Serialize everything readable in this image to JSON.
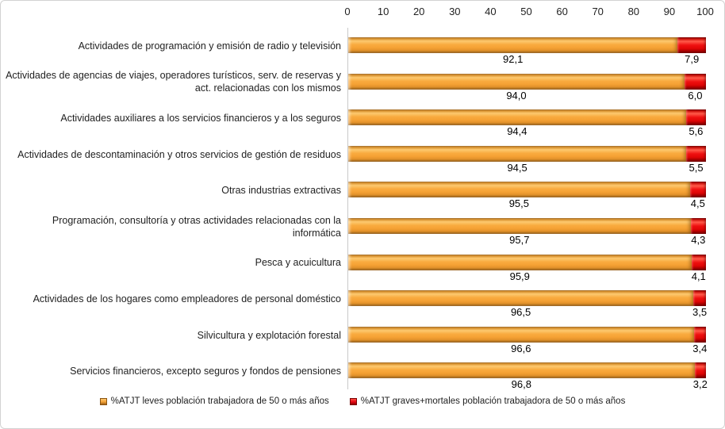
{
  "figure": {
    "background": "#FFFFFF",
    "border_color": "#D2D2D2"
  },
  "chart_data": {
    "type": "bar",
    "subtype": "horizontal_stacked",
    "title": "",
    "xlabel": "",
    "ylabel": "",
    "grid": false,
    "x_axis": {
      "position": "top",
      "min": 0,
      "max": 100,
      "ticks": [
        "0",
        "10",
        "20",
        "30",
        "40",
        "50",
        "60",
        "70",
        "80",
        "90",
        "100"
      ]
    },
    "categories": [
      "Actividades de programación y emisión de radio y televisión",
      "Actividades de agencias de viajes, operadores turísticos, serv. de reservas y act. relacionadas con los mismos",
      "Actividades auxiliares a los servicios financieros y a los seguros",
      "Actividades de descontaminación y otros servicios de gestión de residuos",
      "Otras industrias extractivas",
      "Programación, consultoría y otras actividades relacionadas con la informática",
      "Pesca y acuicultura",
      "Actividades de los hogares como empleadores de personal doméstico",
      "Silvicultura y explotación forestal",
      "Servicios financieros, excepto seguros y fondos de pensiones"
    ],
    "series": [
      {
        "name": "%ATJT leves población trabajadora de 50 o más años",
        "color": "#F5A134",
        "values": [
          92.1,
          94.0,
          94.4,
          94.5,
          95.5,
          95.7,
          95.9,
          96.5,
          96.6,
          96.8
        ],
        "data_labels": [
          "92,1",
          "94,0",
          "94,4",
          "94,5",
          "95,5",
          "95,7",
          "95,9",
          "96,5",
          "96,6",
          "96,8"
        ]
      },
      {
        "name": "%ATJT graves+mortales población trabajadora de 50 o más años",
        "color": "#E30613",
        "values": [
          7.9,
          6.0,
          5.6,
          5.5,
          4.5,
          4.3,
          4.1,
          3.5,
          3.4,
          3.2
        ],
        "data_labels": [
          "7,9",
          "6,0",
          "5,6",
          "5,5",
          "4,5",
          "4,3",
          "4,1",
          "3,5",
          "3,4",
          "3,2"
        ]
      }
    ],
    "legend": {
      "position": "bottom"
    }
  }
}
